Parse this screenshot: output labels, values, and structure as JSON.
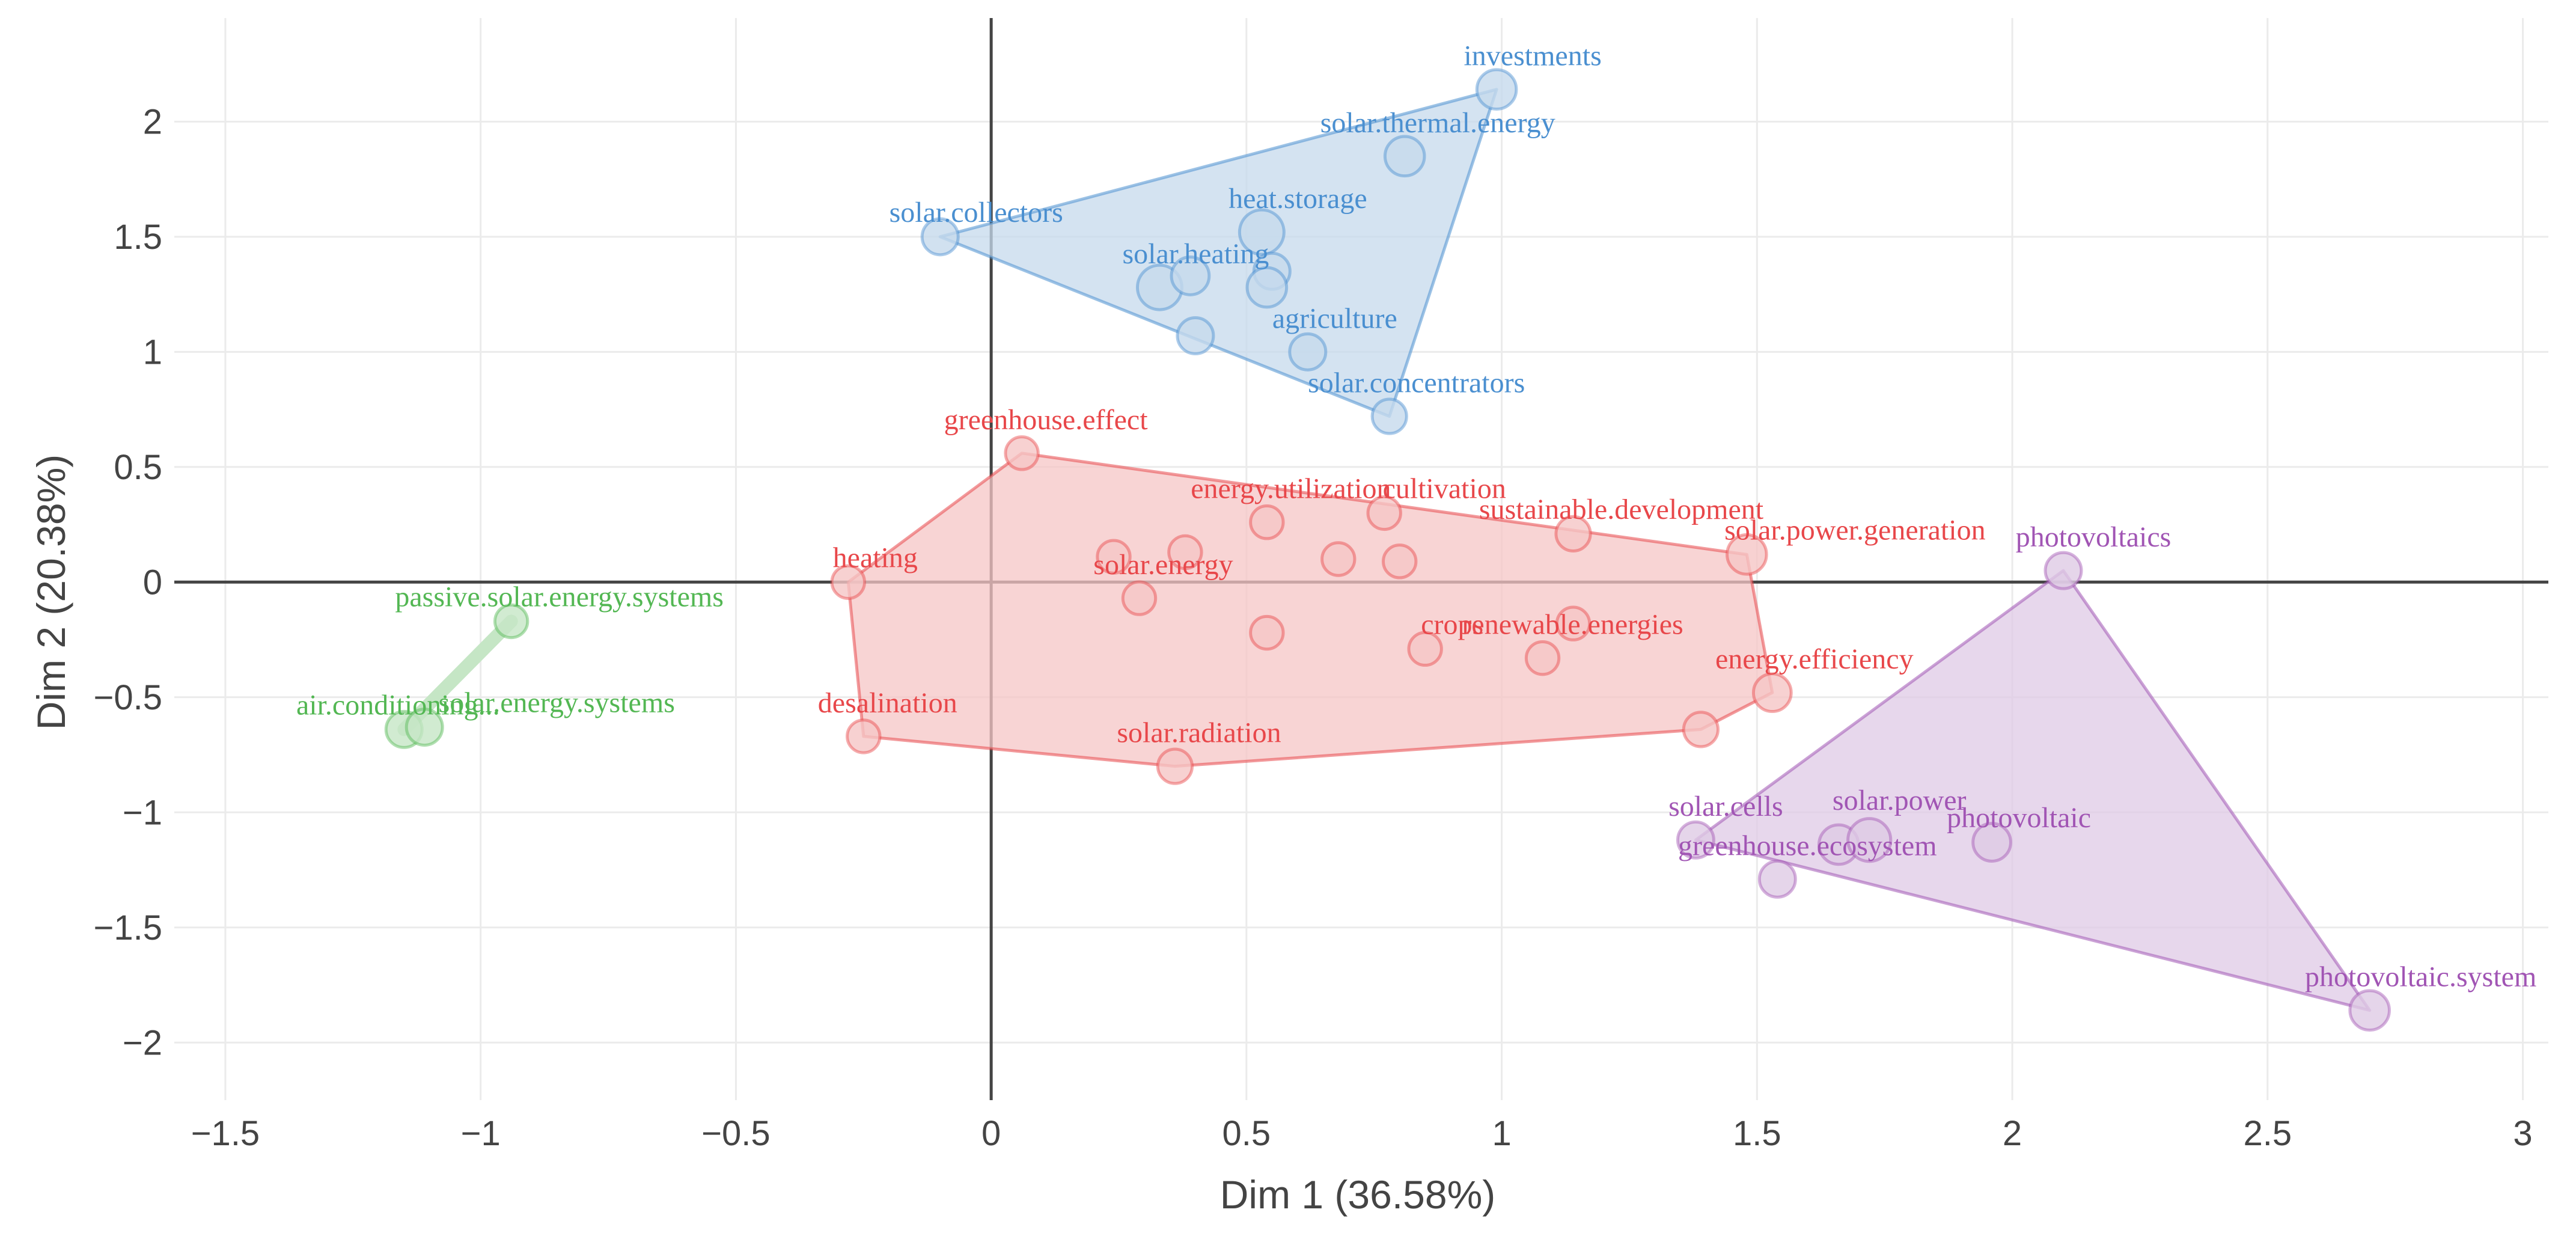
{
  "chart_data": {
    "type": "scatter",
    "title": "",
    "xlabel": "Dim 1 (36.58%)",
    "ylabel": "Dim 2 (20.38%)",
    "xlim": [
      -1.6,
      3.05
    ],
    "ylim": [
      -2.25,
      2.45
    ],
    "grid": true,
    "legend": "none",
    "x_ticks": [
      -1.5,
      -1,
      -0.5,
      0,
      0.5,
      1,
      1.5,
      2,
      2.5,
      3
    ],
    "x_tick_labels": [
      "−1.5",
      "−1",
      "−0.5",
      "0",
      "0.5",
      "1",
      "1.5",
      "2",
      "2.5",
      "3"
    ],
    "y_ticks": [
      -2,
      -1.5,
      -1,
      -0.5,
      0,
      0.5,
      1,
      1.5,
      2
    ],
    "y_tick_labels": [
      "−2",
      "−1.5",
      "−1",
      "−0.5",
      "0",
      "0.5",
      "1",
      "1.5",
      "2"
    ],
    "series": [
      {
        "color": "#4a8fd0",
        "hull_fill": "#c6d9ec",
        "hull": [
          [
            -0.1,
            1.5
          ],
          [
            0.99,
            2.14
          ],
          [
            0.78,
            0.72
          ]
        ],
        "points": [
          {
            "x": -0.1,
            "y": 1.5,
            "size": 1,
            "label": "solar.collectors",
            "dx": 60,
            "dy": -25
          },
          {
            "x": 0.99,
            "y": 2.14,
            "size": 1.2,
            "label": "investments",
            "dx": 60,
            "dy": -40
          },
          {
            "x": 0.81,
            "y": 1.85,
            "size": 1.2,
            "label": "solar.thermal.energy",
            "dx": 55,
            "dy": -40
          },
          {
            "x": 0.53,
            "y": 1.52,
            "size": 1.5,
            "label": "heat.storage",
            "dx": 60,
            "dy": -40
          },
          {
            "x": 0.33,
            "y": 1.28,
            "size": 1.5,
            "label": "solar.heating",
            "dx": 60,
            "dy": -40
          },
          {
            "x": 0.39,
            "y": 1.33,
            "size": 1.1,
            "label": "",
            "dx": 0,
            "dy": 0
          },
          {
            "x": 0.55,
            "y": 1.35,
            "size": 1.0,
            "label": "",
            "dx": 0,
            "dy": 0
          },
          {
            "x": 0.54,
            "y": 1.28,
            "size": 1.2,
            "label": "",
            "dx": 0,
            "dy": 0
          },
          {
            "x": 0.4,
            "y": 1.07,
            "size": 1.0,
            "label": "",
            "dx": 0,
            "dy": 0
          },
          {
            "x": 0.62,
            "y": 1.0,
            "size": 1.0,
            "label": "agriculture",
            "dx": 45,
            "dy": -40
          },
          {
            "x": 0.78,
            "y": 0.72,
            "size": 0.9,
            "label": "solar.concentrators",
            "dx": 45,
            "dy": -40
          }
        ]
      },
      {
        "color": "#e8474a",
        "hull_fill": "#f5c5c5",
        "hull": [
          [
            0.06,
            0.56
          ],
          [
            1.48,
            0.12
          ],
          [
            1.53,
            -0.48
          ],
          [
            1.39,
            -0.64
          ],
          [
            0.36,
            -0.8
          ],
          [
            -0.25,
            -0.67
          ],
          [
            -0.28,
            0.0
          ]
        ],
        "points": [
          {
            "x": 0.06,
            "y": 0.56,
            "size": 0.8,
            "label": "greenhouse.effect",
            "dx": 40,
            "dy": -40
          },
          {
            "x": -0.28,
            "y": 0.0,
            "size": 0.8,
            "label": "heating",
            "dx": 45,
            "dy": -25
          },
          {
            "x": -0.25,
            "y": -0.67,
            "size": 0.8,
            "label": "desalination",
            "dx": 40,
            "dy": -40
          },
          {
            "x": 0.36,
            "y": -0.8,
            "size": 0.9,
            "label": "solar.radiation",
            "dx": 40,
            "dy": -40
          },
          {
            "x": 0.24,
            "y": 0.11,
            "size": 0.8,
            "label": "",
            "dx": 0,
            "dy": 0
          },
          {
            "x": 0.38,
            "y": 0.13,
            "size": 0.8,
            "label": "",
            "dx": 0,
            "dy": 0
          },
          {
            "x": 0.54,
            "y": 0.26,
            "size": 0.8,
            "label": "energy.utilization",
            "dx": 40,
            "dy": -40
          },
          {
            "x": 0.29,
            "y": -0.07,
            "size": 0.8,
            "label": "solar.energy",
            "dx": 40,
            "dy": -40
          },
          {
            "x": 0.54,
            "y": -0.22,
            "size": 0.8,
            "label": "",
            "dx": 0,
            "dy": 0
          },
          {
            "x": 0.68,
            "y": 0.1,
            "size": 0.8,
            "label": "",
            "dx": 0,
            "dy": 0
          },
          {
            "x": 0.77,
            "y": 0.3,
            "size": 0.8,
            "label": "cultivation",
            "dx": 100,
            "dy": -25
          },
          {
            "x": 0.8,
            "y": 0.09,
            "size": 0.8,
            "label": "",
            "dx": 0,
            "dy": 0
          },
          {
            "x": 0.85,
            "y": -0.29,
            "size": 0.8,
            "label": "crops",
            "dx": 45,
            "dy": -25
          },
          {
            "x": 1.08,
            "y": -0.33,
            "size": 0.8,
            "label": "renewable.energies",
            "dx": 50,
            "dy": -40
          },
          {
            "x": 1.14,
            "y": -0.18,
            "size": 0.8,
            "label": "",
            "dx": 0,
            "dy": 0
          },
          {
            "x": 1.14,
            "y": 0.21,
            "size": 0.9,
            "label": "sustainable.development",
            "dx": 80,
            "dy": -25
          },
          {
            "x": 1.48,
            "y": 0.12,
            "size": 1.2,
            "label": "solar.power.generation",
            "dx": 180,
            "dy": -25
          },
          {
            "x": 1.53,
            "y": -0.48,
            "size": 1.1,
            "label": "energy.efficiency",
            "dx": 70,
            "dy": -40
          },
          {
            "x": 1.39,
            "y": -0.64,
            "size": 0.9,
            "label": "",
            "dx": 0,
            "dy": 0
          }
        ]
      },
      {
        "color": "#53b753",
        "hull_fill": "#c5e6c5",
        "hull": [
          [
            -0.94,
            -0.17
          ],
          [
            -1.15,
            -0.64
          ]
        ],
        "points": [
          {
            "x": -0.94,
            "y": -0.17,
            "size": 0.8,
            "label": "passive.solar.energy.systems",
            "dx": 80,
            "dy": -25
          },
          {
            "x": -1.15,
            "y": -0.64,
            "size": 1.0,
            "label": "air.conditioning...",
            "dx": -10,
            "dy": -25
          },
          {
            "x": -1.11,
            "y": -0.63,
            "size": 1.0,
            "label": "solar.energy.systems",
            "dx": 220,
            "dy": -25
          }
        ]
      },
      {
        "color": "#a155b4",
        "hull_fill": "#dfcae5",
        "hull": [
          [
            2.1,
            0.05
          ],
          [
            2.7,
            -1.86
          ],
          [
            1.38,
            -1.12
          ]
        ],
        "points": [
          {
            "x": 2.1,
            "y": 0.05,
            "size": 1.0,
            "label": "photovoltaics",
            "dx": 50,
            "dy": -40
          },
          {
            "x": 1.38,
            "y": -1.12,
            "size": 1.0,
            "label": "solar.cells",
            "dx": 50,
            "dy": -40
          },
          {
            "x": 1.54,
            "y": -1.29,
            "size": 1.0,
            "label": "greenhouse.ecosystem",
            "dx": 50,
            "dy": -40
          },
          {
            "x": 1.66,
            "y": -1.14,
            "size": 1.2,
            "label": "",
            "dx": 0,
            "dy": 0
          },
          {
            "x": 1.72,
            "y": -1.12,
            "size": 1.4,
            "label": "solar.power",
            "dx": 50,
            "dy": -50
          },
          {
            "x": 1.96,
            "y": -1.13,
            "size": 1.1,
            "label": "photovoltaic",
            "dx": 45,
            "dy": -25
          },
          {
            "x": 2.7,
            "y": -1.86,
            "size": 1.2,
            "label": "photovoltaic.system",
            "dx": 85,
            "dy": -40
          }
        ]
      }
    ]
  }
}
